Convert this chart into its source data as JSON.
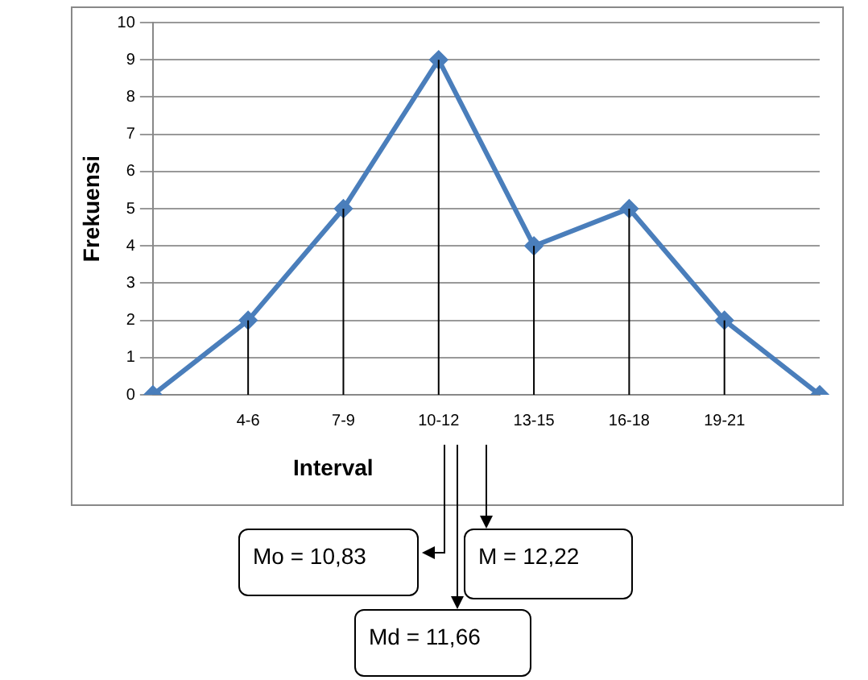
{
  "chart_data": {
    "type": "line",
    "xlabel": "Interval",
    "ylabel": "Frekuensi",
    "categories": [
      null,
      "4-6",
      "7-9",
      "10-12",
      "13-15",
      "16-18",
      "19-21",
      null
    ],
    "series": [
      {
        "color": "#4a7ebb",
        "values": [
          0,
          2,
          5,
          9,
          4,
          5,
          2,
          0
        ],
        "errors": [
          null,
          [
            0,
            2
          ],
          [
            0,
            5
          ],
          [
            0,
            9
          ],
          [
            0,
            4
          ],
          [
            0,
            5
          ],
          [
            0,
            2
          ],
          null
        ]
      }
    ],
    "ylim": [
      0,
      10
    ],
    "yticks": [
      0,
      1,
      2,
      3,
      4,
      5,
      6,
      7,
      8,
      9,
      10
    ],
    "grid": "y",
    "legend": false,
    "marker": "diamond",
    "line_style": "solid",
    "annotations": [
      "Mo = 10,83",
      "M = 12,22",
      "Md = 11,66"
    ]
  }
}
